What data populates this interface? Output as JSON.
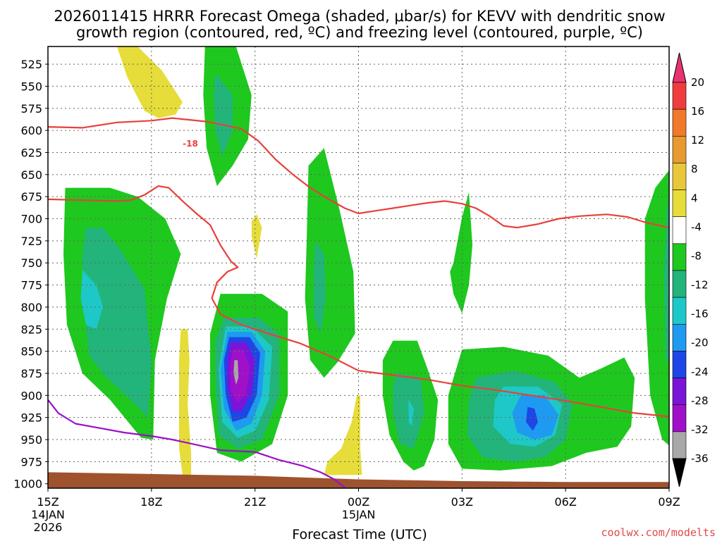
{
  "chart_data": {
    "type": "contour",
    "title_line1": "2026011415 HRRR Forecast Omega (shaded, μbar/s) for KEVV with dendritic snow",
    "title_line2": "growth region (contoured, red, ºC) and freezing level (contoured, purple, ºC)",
    "xlabel": "Forecast Time (UTC)",
    "credit": "coolwx.com/modelts",
    "x_range": [
      0,
      18
    ],
    "y_range": [
      1005,
      505
    ],
    "x_ticks": [
      {
        "h": 0,
        "label": "15Z",
        "sub1": "14JAN",
        "sub2": "2026"
      },
      {
        "h": 3,
        "label": "18Z",
        "sub1": "",
        "sub2": ""
      },
      {
        "h": 6,
        "label": "21Z",
        "sub1": "",
        "sub2": ""
      },
      {
        "h": 9,
        "label": "00Z",
        "sub1": "15JAN",
        "sub2": ""
      },
      {
        "h": 12,
        "label": "03Z",
        "sub1": "",
        "sub2": ""
      },
      {
        "h": 15,
        "label": "06Z",
        "sub1": "",
        "sub2": ""
      },
      {
        "h": 18,
        "label": "09Z",
        "sub1": "",
        "sub2": ""
      }
    ],
    "y_ticks": [
      "525",
      "550",
      "575",
      "600",
      "625",
      "650",
      "675",
      "700",
      "725",
      "750",
      "775",
      "800",
      "825",
      "850",
      "875",
      "900",
      "925",
      "950",
      "975",
      "1000"
    ],
    "colorbar": {
      "labels": [
        "20",
        "16",
        "12",
        "8",
        "4",
        "-4",
        "-8",
        "-12",
        "-16",
        "-20",
        "-24",
        "-28",
        "-32",
        "-36"
      ],
      "colors": [
        "#e8336f",
        "#f03c3c",
        "#f07a2a",
        "#e89a30",
        "#e8c83a",
        "#e6dd3a",
        "#ffffff",
        "#1ec81e",
        "#22b47a",
        "#1ec8c8",
        "#1e9bf0",
        "#1e46e6",
        "#7a14d8",
        "#a010c8",
        "#a8a8a8",
        "#000000"
      ]
    },
    "omega_colors": {
      "g4": "#1ec81e",
      "g8": "#22b47a",
      "g12": "#1ec8c8",
      "g16": "#1e9bf0",
      "g20": "#1e46e6",
      "g24": "#7a14d8",
      "g28": "#a010c8",
      "g32": "#a8a8a8",
      "y4": "#e6dd3a"
    },
    "dgz_label": "-18",
    "dgz_line": {
      "color": "#e8403a",
      "points": [
        [
          0,
          596
        ],
        [
          1,
          597
        ],
        [
          2,
          591
        ],
        [
          3,
          589
        ],
        [
          3.6,
          586
        ],
        [
          4.6,
          590
        ],
        [
          5.6,
          598
        ],
        [
          6.1,
          612
        ],
        [
          6.6,
          633
        ],
        [
          7.1,
          650
        ],
        [
          7.6,
          665
        ],
        [
          8.1,
          677
        ],
        [
          8.6,
          688
        ],
        [
          9,
          694
        ],
        [
          9.5,
          691
        ],
        [
          10,
          688
        ],
        [
          10.5,
          685
        ],
        [
          11,
          682
        ],
        [
          11.5,
          680
        ],
        [
          12,
          683
        ],
        [
          12.4,
          688
        ],
        [
          12.8,
          697
        ],
        [
          13.2,
          708
        ],
        [
          13.6,
          710
        ],
        [
          14.2,
          706
        ],
        [
          14.8,
          700
        ],
        [
          15.4,
          697
        ],
        [
          16.2,
          695
        ],
        [
          16.8,
          698
        ],
        [
          17.3,
          704
        ],
        [
          18,
          710
        ]
      ]
    },
    "dgz_line2": {
      "color": "#e8403a",
      "points": [
        [
          0,
          678
        ],
        [
          1,
          679
        ],
        [
          2,
          680
        ],
        [
          2.4,
          679
        ],
        [
          2.8,
          673
        ],
        [
          3.2,
          663
        ],
        [
          3.5,
          665
        ],
        [
          3.9,
          680
        ],
        [
          4.3,
          694
        ],
        [
          4.7,
          707
        ],
        [
          5,
          730
        ],
        [
          5.3,
          748
        ],
        [
          5.5,
          755
        ],
        [
          5.2,
          760
        ],
        [
          4.9,
          772
        ],
        [
          4.75,
          790
        ],
        [
          5,
          808
        ],
        [
          5.6,
          820
        ],
        [
          6.4,
          830
        ],
        [
          7.3,
          841
        ],
        [
          8.2,
          856
        ],
        [
          9,
          872
        ],
        [
          10,
          877
        ],
        [
          11,
          882
        ],
        [
          12,
          889
        ],
        [
          13,
          894
        ],
        [
          14,
          900
        ],
        [
          15,
          906
        ],
        [
          16,
          913
        ],
        [
          17,
          920
        ],
        [
          18,
          924
        ]
      ]
    },
    "freezing_line": {
      "color": "#9a10c8",
      "points": [
        [
          0,
          905
        ],
        [
          0.3,
          920
        ],
        [
          0.8,
          932
        ],
        [
          1.5,
          937
        ],
        [
          2.2,
          942
        ],
        [
          3,
          946
        ],
        [
          3.6,
          950
        ],
        [
          4.2,
          955
        ],
        [
          5,
          962
        ],
        [
          6,
          964
        ],
        [
          6.7,
          973
        ],
        [
          7.4,
          980
        ],
        [
          7.9,
          987
        ],
        [
          8.3,
          995
        ],
        [
          8.6,
          1004
        ]
      ]
    },
    "terrain": {
      "color": "#a0522d",
      "points": [
        [
          0,
          987
        ],
        [
          3,
          989
        ],
        [
          6,
          991
        ],
        [
          9,
          995
        ],
        [
          12,
          997
        ],
        [
          15,
          998
        ],
        [
          18,
          998
        ]
      ]
    }
  }
}
